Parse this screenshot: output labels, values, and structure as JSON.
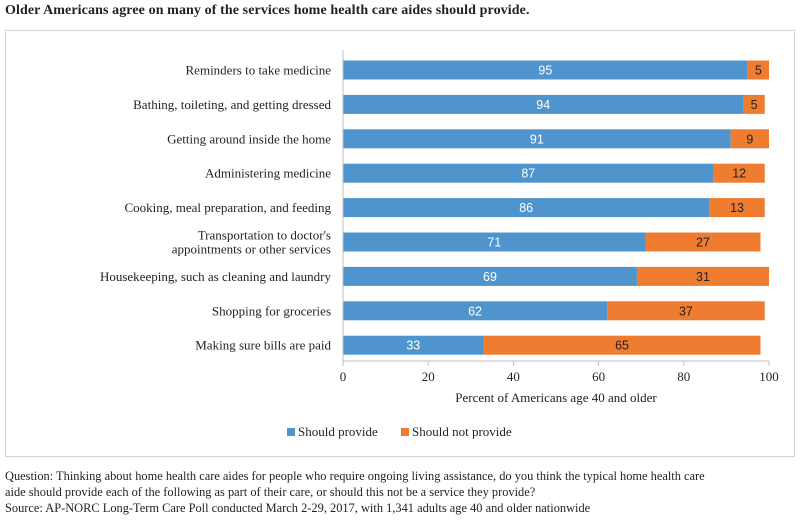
{
  "title": "Older Americans agree on many of the services home health care aides should provide.",
  "chart_data": {
    "type": "bar",
    "orientation": "horizontal",
    "stacked": true,
    "categories": [
      [
        "Reminders to take medicine"
      ],
      [
        "Bathing, toileting, and getting dressed"
      ],
      [
        "Getting around inside the home"
      ],
      [
        "Administering medicine"
      ],
      [
        "Cooking, meal preparation, and feeding"
      ],
      [
        "Transportation to doctor's",
        "appointments or other services"
      ],
      [
        "Housekeeping, such as cleaning and laundry"
      ],
      [
        "Shopping for groceries"
      ],
      [
        "Making sure bills are paid"
      ]
    ],
    "series": [
      {
        "name": "Should provide",
        "color": "#4f94cd",
        "values": [
          95,
          94,
          91,
          87,
          86,
          71,
          69,
          62,
          33
        ]
      },
      {
        "name": "Should not provide",
        "color": "#ee7d31",
        "values": [
          5,
          5,
          9,
          12,
          13,
          27,
          31,
          37,
          65
        ]
      }
    ],
    "xlabel": "Percent of Americans age 40 and older",
    "xlim": [
      0,
      100
    ],
    "xticks": [
      0,
      20,
      40,
      60,
      80,
      100
    ],
    "legend_position": "bottom",
    "grid": false
  },
  "footnote": {
    "question_line1": "Question: Thinking about home health care aides for people who require ongoing living assistance, do you think the typical home health care",
    "question_line2": "aide should provide each of the following as part of their care, or should this not be a service they provide?",
    "source": "Source: AP-NORC Long-Term Care Poll conducted March 2-29, 2017, with 1,341 adults age 40 and older nationwide"
  }
}
